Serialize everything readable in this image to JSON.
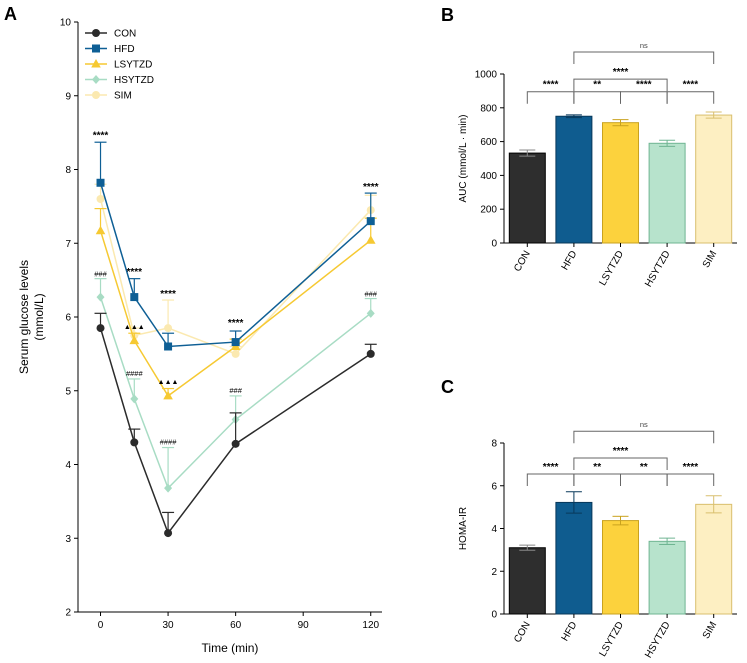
{
  "colors": {
    "CON": "#2b2b2b",
    "HFD": "#0e5f95",
    "LSYTZD": "#f6c932",
    "HSYTZD": "#a8dcc4",
    "SIM": "#fbe9b0",
    "bar_fill": {
      "CON": "#2e2e2e",
      "HFD": "#0f5c8f",
      "LSYTZD": "#fcd23d",
      "HSYTZD": "#b7e3cc",
      "SIM": "#fdefc2"
    },
    "bar_edge": {
      "CON": "#000000",
      "HFD": "#08385a",
      "LSYTZD": "#c9a21e",
      "HSYTZD": "#6fb592",
      "SIM": "#d9bf6e"
    }
  },
  "chart_data": [
    {
      "panel": "A",
      "type": "line",
      "xlabel": "Time (min)",
      "ylabel_line1": "Serum glucose levels",
      "ylabel_line2": "(mmol/L)",
      "xlim": [
        -10,
        125
      ],
      "ylim": [
        2,
        10
      ],
      "x_ticks": [
        0,
        30,
        60,
        90,
        120
      ],
      "x_tick_labels": [
        "0",
        "30",
        "60",
        "90",
        "120"
      ],
      "y_ticks": [
        2,
        3,
        4,
        5,
        6,
        7,
        8,
        9,
        10
      ],
      "y_tick_labels": [
        "2",
        "3",
        "4",
        "5",
        "6",
        "7",
        "8",
        "9",
        "10"
      ],
      "x": [
        0,
        15,
        30,
        60,
        120
      ],
      "legend": [
        "CON",
        "HFD",
        "LSYTZD",
        "HSYTZD",
        "SIM"
      ],
      "series": [
        {
          "name": "CON",
          "marker": "circle",
          "values": [
            5.85,
            4.3,
            3.07,
            4.28,
            5.5
          ],
          "err": [
            0.2,
            0.18,
            0.28,
            0.42,
            0.13
          ]
        },
        {
          "name": "HFD",
          "marker": "square",
          "values": [
            7.82,
            6.27,
            5.6,
            5.66,
            7.3
          ],
          "err": [
            0.55,
            0.25,
            0.18,
            0.15,
            0.38
          ]
        },
        {
          "name": "LSYTZD",
          "marker": "triangle",
          "values": [
            7.17,
            5.68,
            4.93,
            5.6,
            7.04
          ],
          "err": [
            0.3,
            0.1,
            0.1,
            0.1,
            0.3
          ]
        },
        {
          "name": "HSYTZD",
          "marker": "diamond",
          "values": [
            6.27,
            4.89,
            3.68,
            4.61,
            6.05
          ],
          "err": [
            0.25,
            0.27,
            0.55,
            0.32,
            0.2
          ]
        },
        {
          "name": "SIM",
          "marker": "circle",
          "values": [
            7.6,
            5.75,
            5.85,
            5.5,
            7.45
          ],
          "err": [
            0.2,
            0.1,
            0.38,
            0.1,
            0.2
          ]
        }
      ],
      "annotations": [
        {
          "x": 0,
          "y": 8.42,
          "text": "****",
          "style": "stars"
        },
        {
          "x": 15,
          "y": 6.57,
          "text": "****",
          "style": "stars"
        },
        {
          "x": 30,
          "y": 6.27,
          "text": "****",
          "style": "stars"
        },
        {
          "x": 60,
          "y": 5.88,
          "text": "****",
          "style": "stars"
        },
        {
          "x": 120,
          "y": 7.72,
          "text": "****",
          "style": "stars"
        },
        {
          "x": 0,
          "y": 6.55,
          "text": "###",
          "style": "hash"
        },
        {
          "x": 15,
          "y": 5.2,
          "text": "####",
          "style": "hash"
        },
        {
          "x": 30,
          "y": 4.27,
          "text": "####",
          "style": "hash"
        },
        {
          "x": 60,
          "y": 4.97,
          "text": "###",
          "style": "hash"
        },
        {
          "x": 120,
          "y": 6.28,
          "text": "###",
          "style": "hash"
        },
        {
          "x": 15,
          "y": 5.84,
          "text": "▲▲▲",
          "style": "tri"
        },
        {
          "x": 30,
          "y": 5.09,
          "text": "▲▲▲",
          "style": "tri"
        }
      ]
    },
    {
      "panel": "B",
      "type": "bar",
      "ylabel": "AUC (mmol/L · min)",
      "ylim": [
        0,
        1000
      ],
      "y_ticks": [
        0,
        200,
        400,
        600,
        800,
        1000
      ],
      "y_tick_labels": [
        "0",
        "200",
        "400",
        "600",
        "800",
        "1000"
      ],
      "categories": [
        "CON",
        "HFD",
        "LSYTZD",
        "HSYTZD",
        "SIM"
      ],
      "values": [
        532,
        750,
        712,
        590,
        757
      ],
      "err": [
        18,
        8,
        18,
        18,
        18
      ],
      "comparisons": [
        {
          "from": 0,
          "to": 1,
          "y": 895,
          "text": "****"
        },
        {
          "from": 1,
          "to": 2,
          "y": 895,
          "text": "**"
        },
        {
          "from": 2,
          "to": 3,
          "y": 895,
          "text": "****"
        },
        {
          "from": 3,
          "to": 4,
          "y": 895,
          "text": "****"
        },
        {
          "from": 1,
          "to": 3,
          "y": 970,
          "text": "****"
        },
        {
          "from": 1,
          "to": 4,
          "y": 1130,
          "text": "ns"
        }
      ]
    },
    {
      "panel": "C",
      "type": "bar",
      "ylabel": "HOMA-IR",
      "ylim": [
        0,
        8
      ],
      "y_ticks": [
        0,
        2,
        4,
        6,
        8
      ],
      "y_tick_labels": [
        "0",
        "2",
        "4",
        "6",
        "8"
      ],
      "categories": [
        "CON",
        "HFD",
        "LSYTZD",
        "HSYTZD",
        "SIM"
      ],
      "values": [
        3.1,
        5.22,
        4.37,
        3.4,
        5.13
      ],
      "err": [
        0.12,
        0.5,
        0.2,
        0.15,
        0.4
      ],
      "comparisons": [
        {
          "from": 0,
          "to": 1,
          "y": 6.55,
          "text": "****"
        },
        {
          "from": 1,
          "to": 2,
          "y": 6.55,
          "text": "**"
        },
        {
          "from": 2,
          "to": 3,
          "y": 6.55,
          "text": "**"
        },
        {
          "from": 3,
          "to": 4,
          "y": 6.55,
          "text": "****"
        },
        {
          "from": 1,
          "to": 3,
          "y": 7.3,
          "text": "****"
        },
        {
          "from": 1,
          "to": 4,
          "y": 8.55,
          "text": "ns"
        }
      ]
    }
  ]
}
